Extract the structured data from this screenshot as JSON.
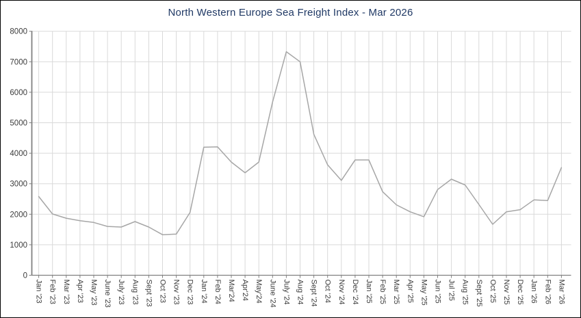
{
  "page": {
    "background": "#ffffff",
    "frame_color": "#000000"
  },
  "chart_data": {
    "type": "line",
    "title": "North Western Europe Sea Freight Index - Mar 2026",
    "categories": [
      "Jan '23",
      "Feb '23",
      "Mar '23",
      "Apr '23",
      "May '23",
      "June '23",
      "July '23",
      "Aug '23",
      "Sept '23",
      "Oct '23",
      "Nov '23",
      "Dec '23",
      "Jan '24",
      "Feb '24",
      "Mar'24",
      "Apr'24",
      "May'24",
      "June '24",
      "July '24",
      "Aug '24",
      "Sept '24",
      "Oct '24",
      "Nov '24",
      "Dec '24",
      "Jan '25",
      "Feb '25",
      "Mar '25",
      "Apr '25",
      "May '25",
      "Jun '25",
      "Jul '25",
      "Aug '25",
      "Sept '25",
      "Oct '25",
      "Nov '25",
      "Dec '25",
      "Jan '26",
      "Feb '26",
      "Mar '26"
    ],
    "values": [
      2580,
      2010,
      1870,
      1790,
      1730,
      1600,
      1580,
      1760,
      1580,
      1330,
      1350,
      2060,
      4200,
      4210,
      3710,
      3360,
      3710,
      5680,
      7330,
      7000,
      4620,
      3620,
      3110,
      3780,
      3780,
      2740,
      2310,
      2080,
      1920,
      2810,
      3150,
      2960,
      2320,
      1670,
      2080,
      2150,
      2470,
      2450,
      3530
    ],
    "xlabel": "",
    "ylabel": "",
    "ylim": [
      0,
      8000
    ],
    "ytick_interval": 1000,
    "y_tick_labels": [
      "0",
      "1000",
      "2000",
      "3000",
      "4000",
      "5000",
      "6000",
      "7000",
      "8000"
    ],
    "grid": true,
    "legend": "none",
    "colors": {
      "series_line": "#a6a6a6",
      "gridline": "#d9d9d9",
      "axis": "#808080",
      "tick_label": "#3b3b3b",
      "title": "#1f3864"
    }
  }
}
